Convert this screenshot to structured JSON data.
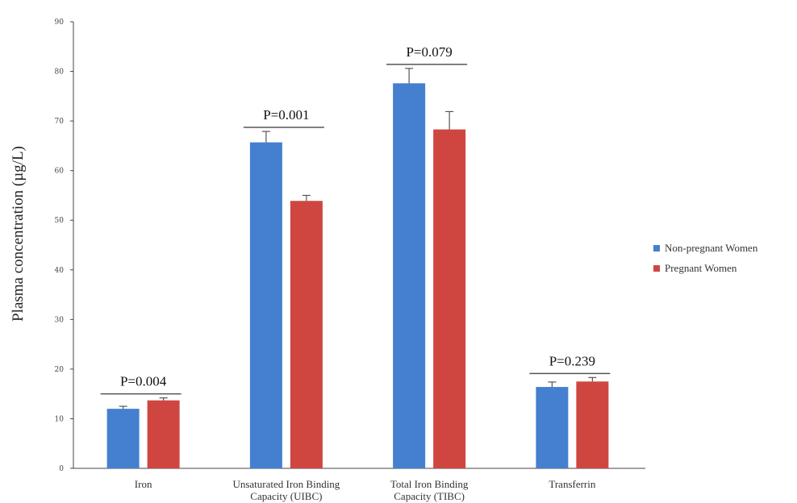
{
  "chart_data": {
    "type": "bar",
    "title": "",
    "xlabel": "",
    "ylabel": "Plasma concentration (µg/L)",
    "ylim": [
      0,
      90
    ],
    "yticks": [
      0,
      10,
      20,
      30,
      40,
      50,
      60,
      70,
      80,
      90
    ],
    "grid": false,
    "legend_position": "right",
    "categories": [
      [
        "Iron"
      ],
      [
        "Unsaturated Iron Binding",
        "Capacity (UIBC)"
      ],
      [
        "Total Iron Binding",
        "Capacity (TIBC)"
      ],
      [
        "Transferrin"
      ]
    ],
    "series": [
      {
        "name": "Non-pregnant Women",
        "color": "#4480cf",
        "values": [
          12.0,
          65.7,
          77.6,
          16.4
        ],
        "errors": [
          0.5,
          2.2,
          3.0,
          1.0
        ]
      },
      {
        "name": "Pregnant Women",
        "color": "#cf4641",
        "values": [
          13.7,
          53.9,
          68.3,
          17.5
        ],
        "errors": [
          0.5,
          1.1,
          3.6,
          0.8
        ]
      }
    ],
    "annotations": [
      "P=0.004",
      "P=0.001",
      "P=0.079",
      "P=0.239"
    ]
  }
}
